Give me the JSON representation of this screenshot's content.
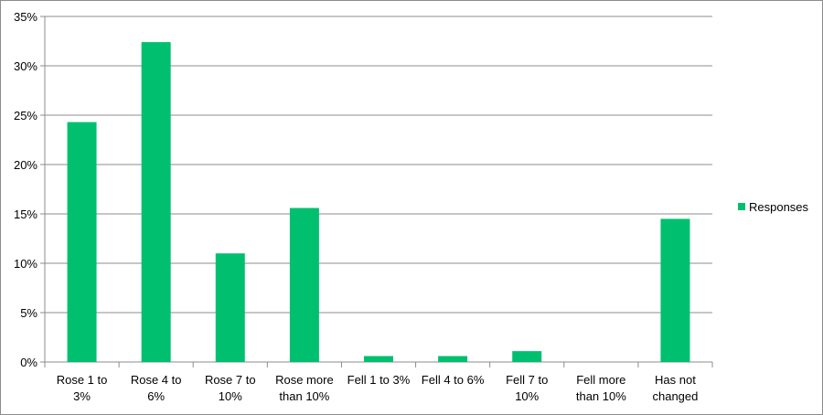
{
  "chart_data": {
    "type": "bar",
    "categories": [
      [
        "Rose 1 to",
        "3%"
      ],
      [
        "Rose 4 to",
        "6%"
      ],
      [
        "Rose 7 to",
        "10%"
      ],
      [
        "Rose more",
        "than 10%"
      ],
      [
        "Fell 1 to 3%"
      ],
      [
        "Fell 4 to 6%"
      ],
      [
        "Fell 7 to",
        "10%"
      ],
      [
        "Fell more",
        "than 10%"
      ],
      [
        "Has not",
        "changed"
      ]
    ],
    "series": [
      {
        "name": "Responses",
        "color": "#00c070",
        "values": [
          24.3,
          32.4,
          11.0,
          15.6,
          0.6,
          0.6,
          1.1,
          0.0,
          14.5
        ]
      }
    ],
    "yticks": [
      "0%",
      "5%",
      "10%",
      "15%",
      "20%",
      "25%",
      "30%",
      "35%"
    ],
    "ylim": [
      0,
      35
    ],
    "grid": true,
    "legend_position": "right",
    "title": "",
    "xlabel": "",
    "ylabel": ""
  }
}
